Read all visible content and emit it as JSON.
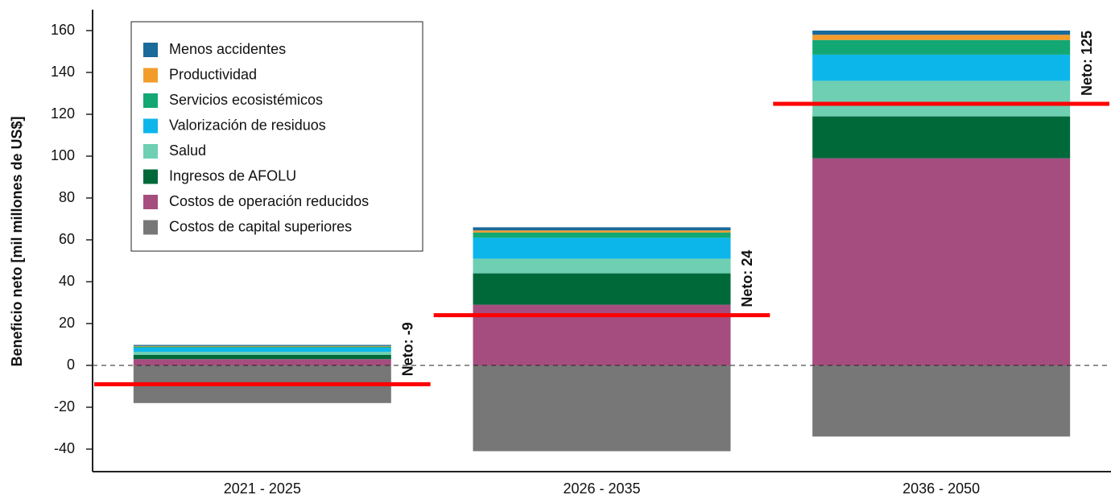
{
  "chart_data": {
    "type": "bar",
    "stacked": true,
    "y_label": "Beneficio neto [mil millones de US$]",
    "categories": [
      "2021 - 2025",
      "2026 - 2035",
      "2036 - 2050"
    ],
    "series": [
      {
        "name": "Menos accidentes",
        "color": "#1a6a9a",
        "values": [
          0.5,
          1.5,
          2
        ]
      },
      {
        "name": "Productividad",
        "color": "#f39c2b",
        "values": [
          0.3,
          1,
          2.5
        ]
      },
      {
        "name": "Servicios ecosistémicos",
        "color": "#13a774",
        "values": [
          0.5,
          2.5,
          7
        ]
      },
      {
        "name": "Valorización de residuos",
        "color": "#0db6ea",
        "values": [
          2,
          10,
          12.5
        ]
      },
      {
        "name": "Salud",
        "color": "#6ecfb2",
        "values": [
          1.5,
          7,
          17
        ]
      },
      {
        "name": "Ingresos de AFOLU",
        "color": "#00693a",
        "values": [
          2,
          15,
          20
        ]
      },
      {
        "name": "Costos de operación reducidos",
        "color": "#a64d7f",
        "values": [
          3,
          29,
          99
        ]
      },
      {
        "name": "Costos de capital superiores",
        "color": "#777777",
        "values": [
          -18,
          -41,
          -34
        ]
      }
    ],
    "net": {
      "color": "#ff0000",
      "values": [
        -9,
        24,
        125
      ],
      "value_labels": [
        "Neto: -9",
        "Neto: 24",
        "Neto: 125"
      ]
    },
    "ylim": [
      -50,
      170
    ],
    "yticks": [
      -40,
      -20,
      0,
      20,
      40,
      60,
      80,
      100,
      120,
      140,
      160
    ],
    "legend": "upper left"
  }
}
